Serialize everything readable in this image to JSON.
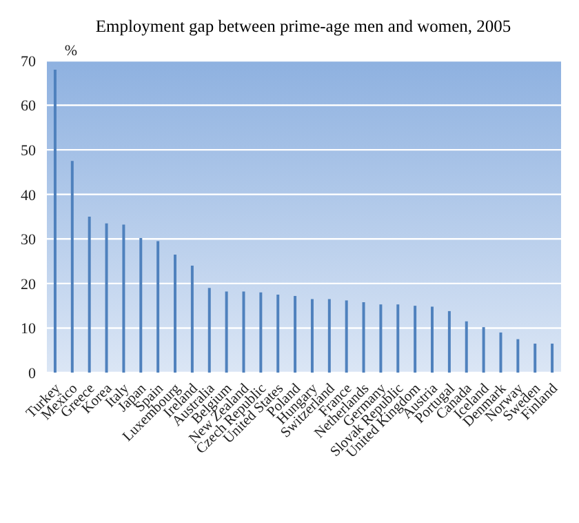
{
  "chart_data": {
    "type": "bar",
    "title": "Employment gap between prime-age men and women, 2005",
    "ylabel": "%",
    "categories": [
      "Turkey",
      "Mexico",
      "Greece",
      "Korea",
      "Italy",
      "Japan",
      "Spain",
      "Luxembourg",
      "Ireland",
      "Australia",
      "Belgium",
      "New Zealand",
      "Czech Republic",
      "United States",
      "Poland",
      "Hungary",
      "Switzerland",
      "France",
      "Netherlands",
      "Germany",
      "Slovak Republic",
      "United Kingdom",
      "Austria",
      "Portugal",
      "Canada",
      "Iceland",
      "Denmark",
      "Norway",
      "Sweden",
      "Finland"
    ],
    "values": [
      68,
      47.5,
      35,
      33.5,
      33.2,
      30.2,
      29.5,
      26.5,
      24,
      19,
      18.2,
      18.2,
      18,
      17.5,
      17.2,
      16.5,
      16.5,
      16.2,
      15.8,
      15.3,
      15.3,
      15,
      14.8,
      13.8,
      11.5,
      10.2,
      9,
      7.5,
      6.5,
      6.5
    ],
    "color": "#4f81bd",
    "ylim": [
      0,
      70
    ],
    "yticks": [
      0,
      10,
      20,
      30,
      40,
      50,
      60,
      70
    ],
    "grid": "y"
  }
}
